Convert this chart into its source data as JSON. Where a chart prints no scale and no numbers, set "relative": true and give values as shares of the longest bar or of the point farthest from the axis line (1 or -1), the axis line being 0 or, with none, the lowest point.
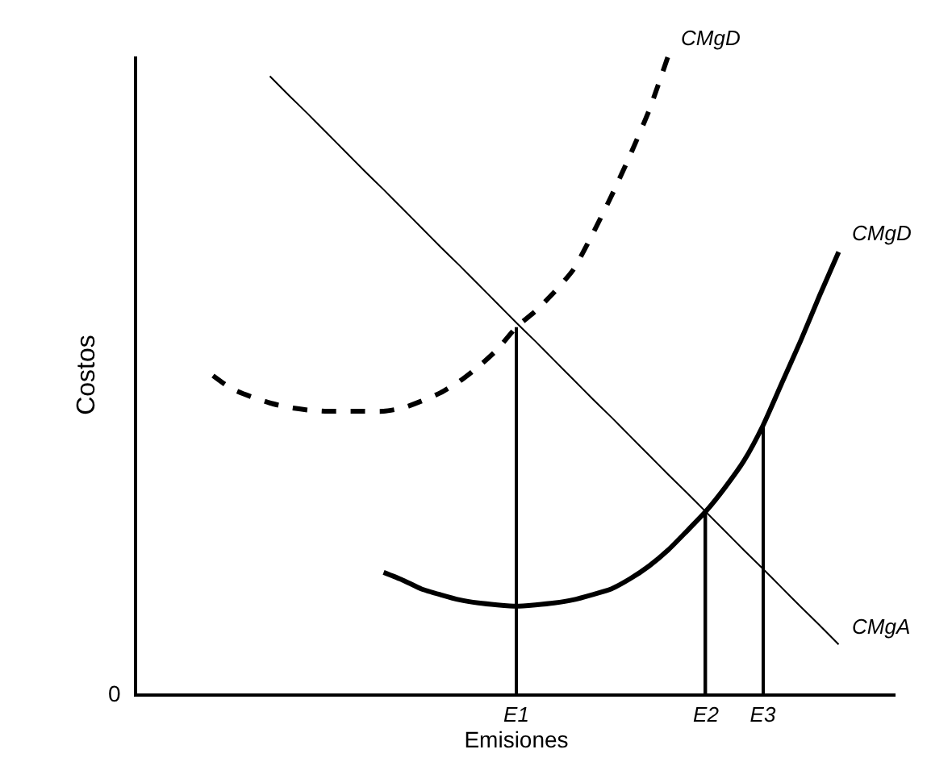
{
  "chart_data": {
    "type": "line",
    "relative": true,
    "xlabel": "Emisiones",
    "ylabel": "Costos",
    "categories": [
      null,
      null,
      null,
      null,
      null,
      null,
      null,
      null,
      null,
      null,
      null,
      null,
      null,
      null,
      null,
      null,
      null,
      null,
      null,
      null,
      "E1",
      null,
      null,
      null,
      null,
      null,
      null,
      null,
      null,
      null,
      "E2",
      null,
      null,
      "E3",
      null,
      null,
      null,
      null,
      null,
      null,
      null
    ],
    "series": [
      {
        "name": "CMgD",
        "color": "#000000",
        "line_style": "dashed",
        "values": [
          null,
          null,
          null,
          null,
          0.499,
          0.478,
          0.466,
          0.456,
          0.449,
          0.445,
          0.443,
          0.443,
          0.443,
          0.443,
          0.448,
          0.459,
          0.472,
          0.49,
          0.513,
          0.54,
          0.575,
          0.6,
          0.63,
          0.665,
          0.72,
          0.78,
          0.845,
          0.915,
          1,
          null,
          null,
          null,
          null,
          null,
          null,
          null,
          null,
          null,
          null,
          null,
          null
        ]
      },
      {
        "name": "CMgD",
        "color": "#000000",
        "line_style": "solid",
        "values": [
          null,
          null,
          null,
          null,
          null,
          null,
          null,
          null,
          null,
          null,
          null,
          null,
          null,
          0.19,
          0.178,
          0.164,
          0.155,
          0.147,
          0.142,
          0.139,
          0.137,
          0.139,
          0.142,
          0.147,
          0.155,
          0.164,
          0.18,
          0.2,
          0.225,
          0.255,
          0.286,
          0.323,
          0.365,
          0.42,
          0.487,
          0.554,
          0.625,
          0.693,
          null,
          null,
          null
        ]
      },
      {
        "name": "CMgA",
        "color": "#000000",
        "line_style": "solid",
        "values": [
          null,
          null,
          null,
          null,
          null,
          null,
          null,
          0.969,
          0.939,
          0.91,
          0.88,
          0.85,
          0.82,
          0.791,
          0.761,
          0.731,
          0.701,
          0.672,
          0.642,
          0.612,
          0.582,
          0.553,
          0.523,
          0.493,
          0.463,
          0.434,
          0.404,
          0.374,
          0.344,
          0.315,
          0.285,
          0.255,
          0.225,
          0.196,
          0.166,
          0.136,
          0.107,
          0.077,
          null,
          null,
          null
        ]
      },
      {
        "type": "bar",
        "color": "#000000",
        "values": [
          null,
          null,
          null,
          null,
          null,
          null,
          null,
          null,
          null,
          null,
          null,
          null,
          null,
          null,
          null,
          null,
          null,
          null,
          null,
          null,
          0.575,
          null,
          null,
          null,
          null,
          null,
          null,
          null,
          null,
          null,
          0.286,
          null,
          null,
          0.42,
          null,
          null,
          null,
          null,
          null,
          null,
          null
        ]
      }
    ],
    "annotations": [
      "0"
    ],
    "grid": false,
    "legend": false,
    "marker": "none"
  }
}
